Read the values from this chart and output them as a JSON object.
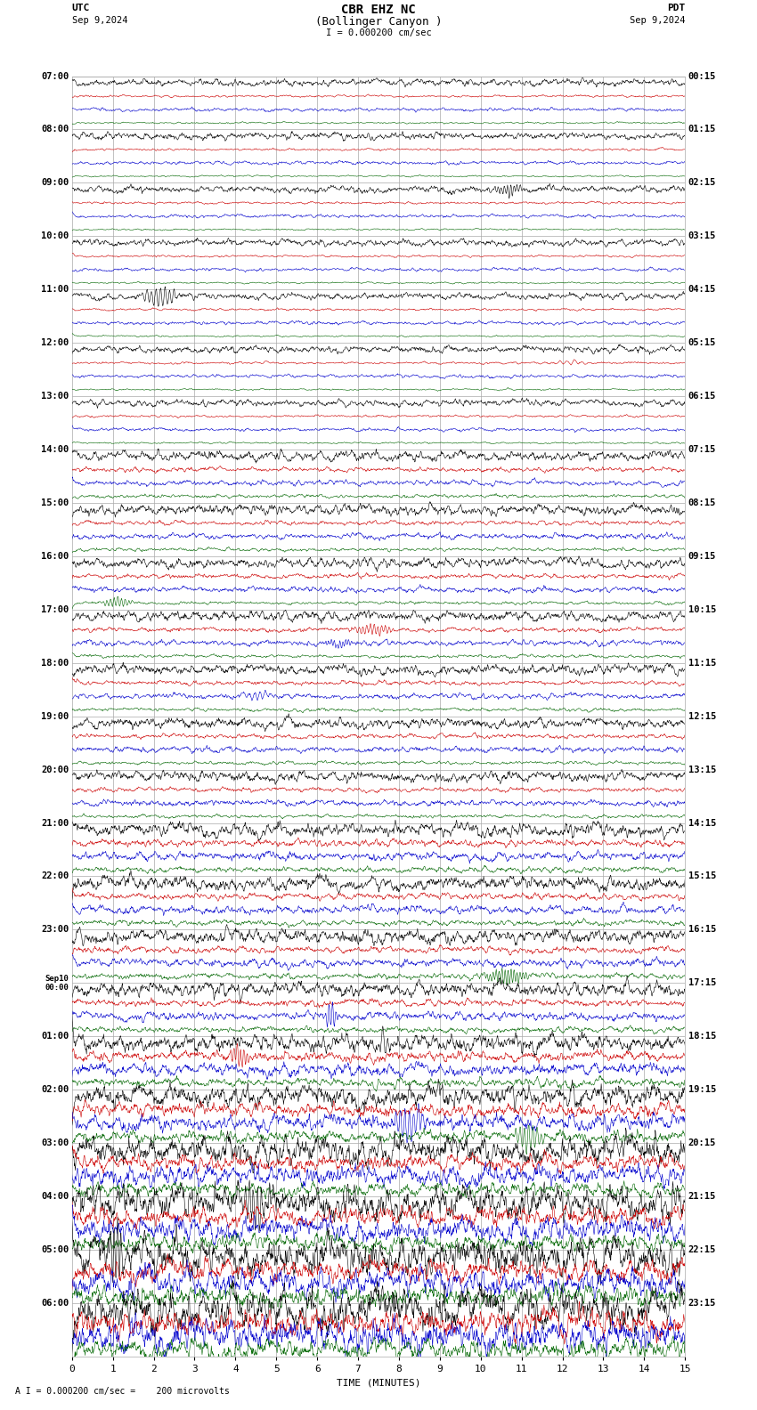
{
  "title_line1": "CBR EHZ NC",
  "title_line2": "(Bollinger Canyon )",
  "scale_text": "I = 0.000200 cm/sec",
  "footer_text": "A I = 0.000200 cm/sec =    200 microvolts",
  "utc_label": "UTC",
  "utc_date": "Sep 9,2024",
  "pdt_label": "PDT",
  "pdt_date": "Sep 9,2024",
  "xlabel": "TIME (MINUTES)",
  "x_ticks": [
    0,
    1,
    2,
    3,
    4,
    5,
    6,
    7,
    8,
    9,
    10,
    11,
    12,
    13,
    14,
    15
  ],
  "xmin": 0,
  "xmax": 15,
  "background_color": "#ffffff",
  "grid_color": "#aaaaaa",
  "trace_colors": [
    "#000000",
    "#cc0000",
    "#0000cc",
    "#006600"
  ],
  "left_labels": [
    "07:00",
    "08:00",
    "09:00",
    "10:00",
    "11:00",
    "12:00",
    "13:00",
    "14:00",
    "15:00",
    "16:00",
    "17:00",
    "18:00",
    "19:00",
    "20:00",
    "21:00",
    "22:00",
    "23:00",
    "Sep10\n00:00",
    "01:00",
    "02:00",
    "03:00",
    "04:00",
    "05:00",
    "06:00"
  ],
  "right_labels": [
    "00:15",
    "01:15",
    "02:15",
    "03:15",
    "04:15",
    "05:15",
    "06:15",
    "07:15",
    "08:15",
    "09:15",
    "10:15",
    "11:15",
    "12:15",
    "13:15",
    "14:15",
    "15:15",
    "16:15",
    "17:15",
    "18:15",
    "19:15",
    "20:15",
    "21:15",
    "22:15",
    "23:15"
  ],
  "num_rows": 24,
  "traces_per_row": 4,
  "noise_seed": 42
}
